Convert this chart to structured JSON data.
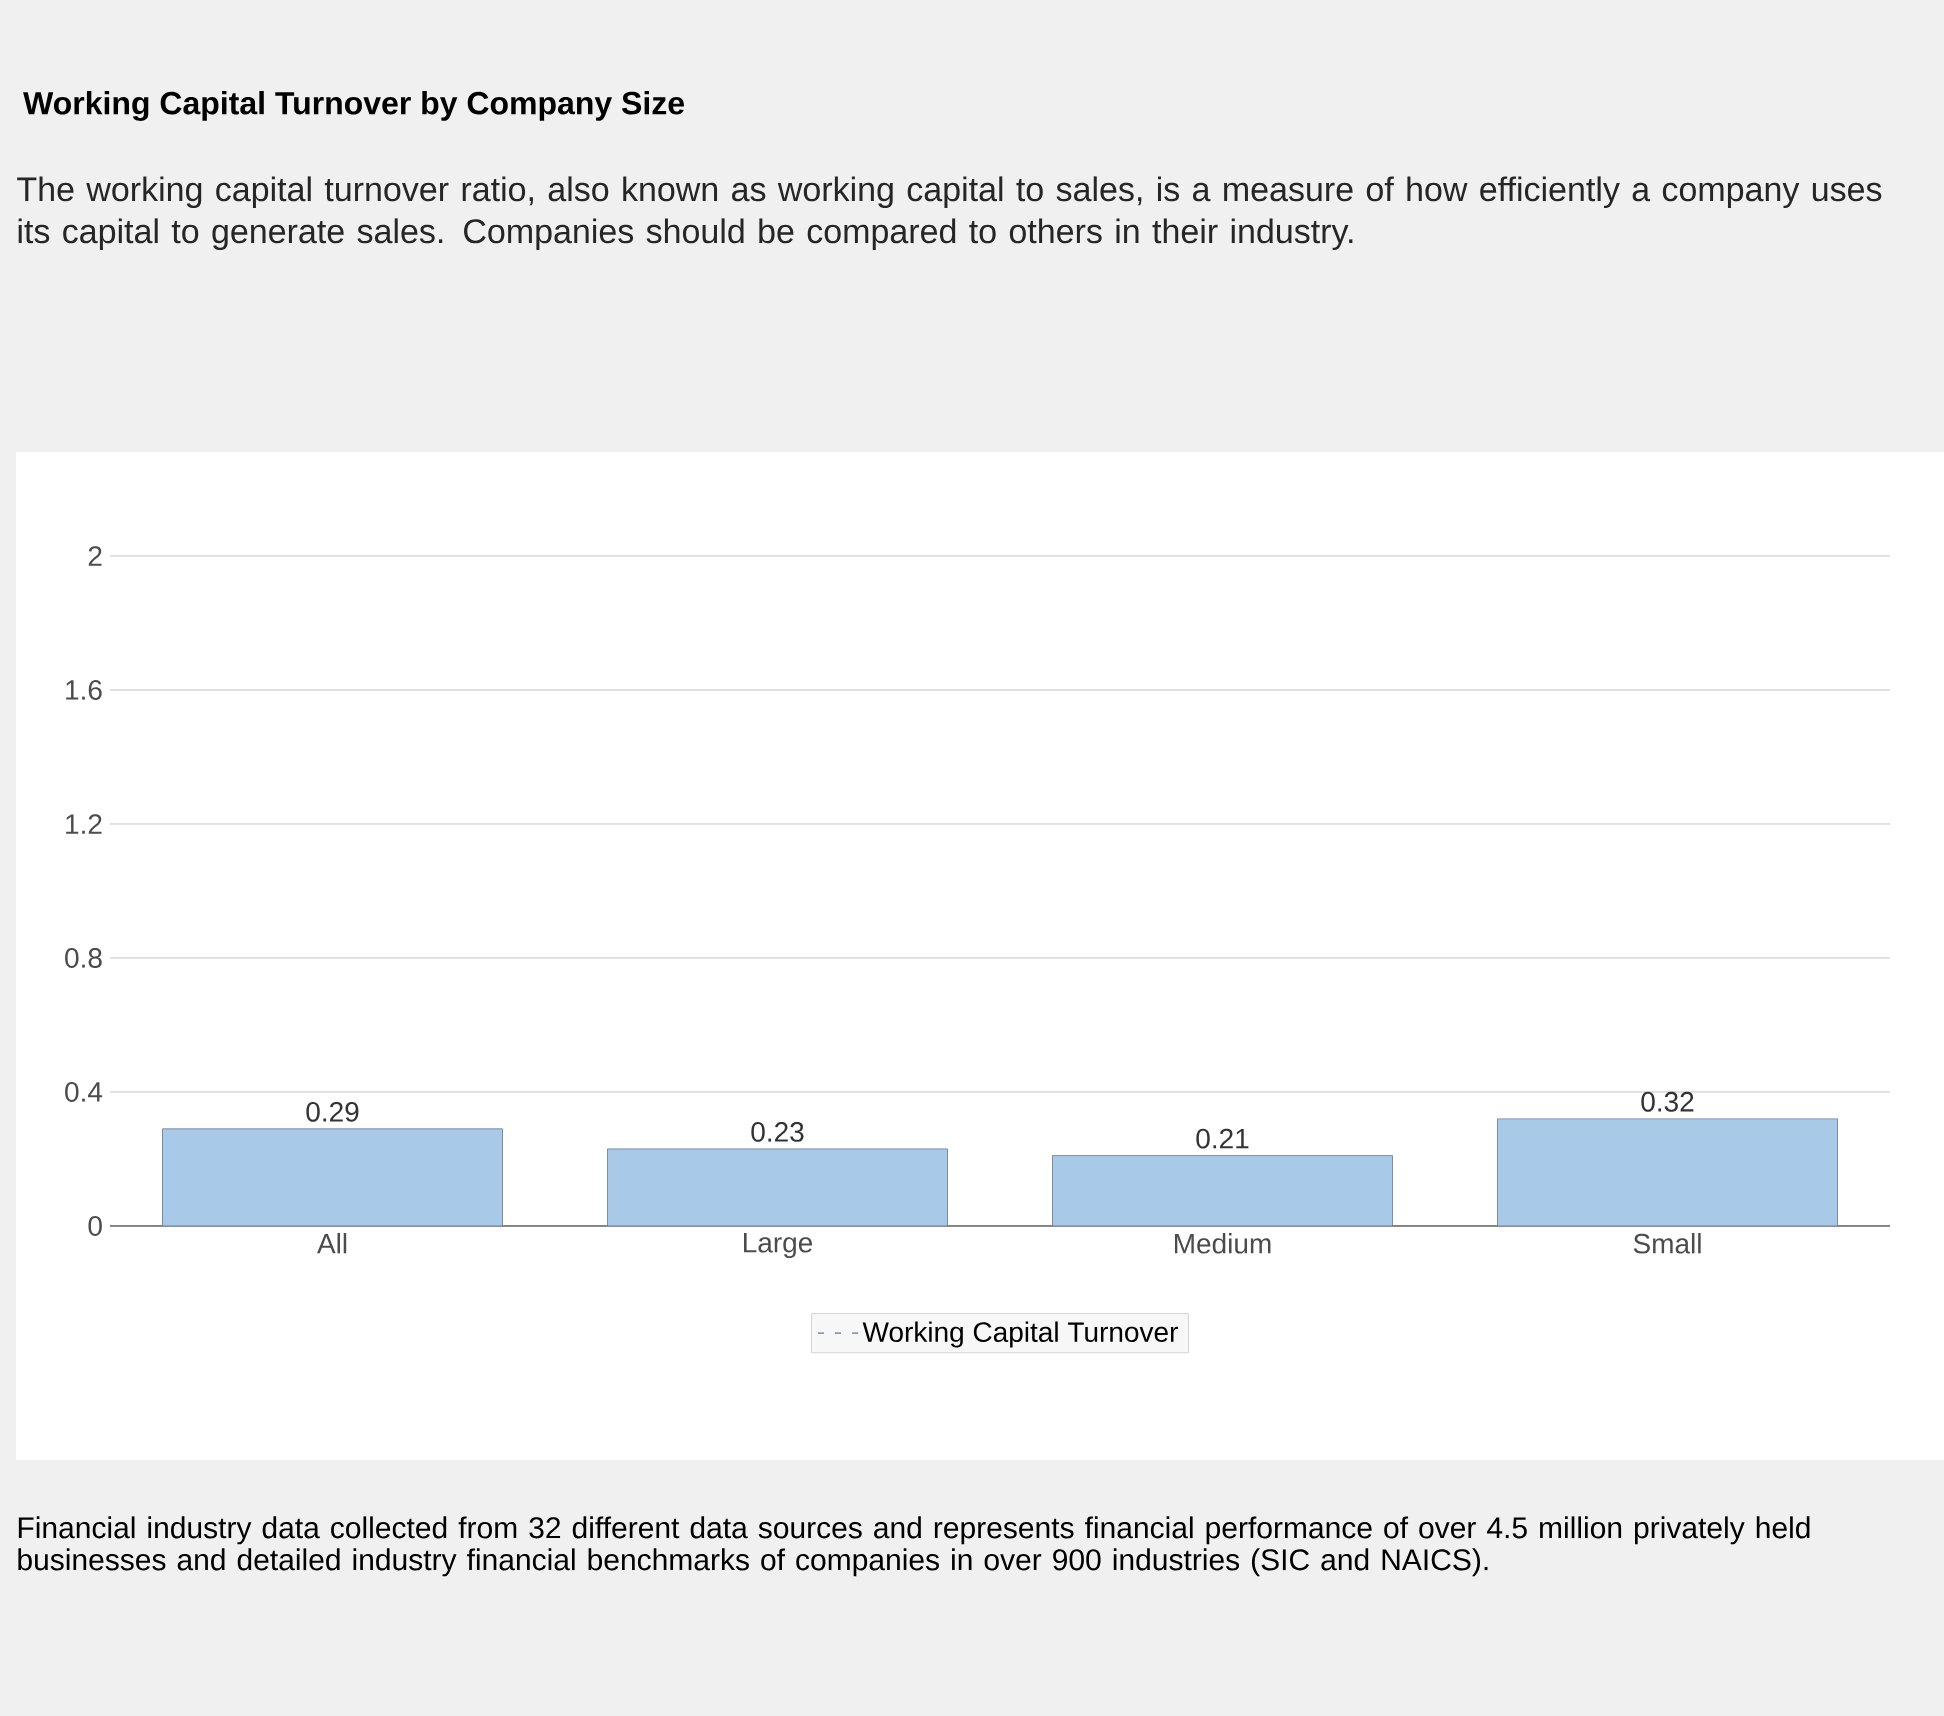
{
  "chart_data": {
    "type": "bar",
    "title": "Working Capital Turnover by Company Size",
    "subtitle": "The working capital turnover ratio, also known as working capital to sales, is a measure of how efficiently a company uses its capital to generate sales. Companies should be compared to others in their industry.",
    "categories": [
      "All",
      "Large",
      "Medium",
      "Small"
    ],
    "series": [
      {
        "name": "Working Capital Turnover",
        "color": "#a9c9e8",
        "values": [
          0.29,
          0.23,
          0.21,
          0.32
        ]
      }
    ],
    "ylim": [
      0,
      2
    ],
    "yticks": [
      0,
      0.4,
      0.8,
      1.2,
      1.6,
      2
    ],
    "grid": "y",
    "legend": "bottom",
    "data_labels": true,
    "annotations": [
      "Financial industry data collected from 32 different data sources and represents financial performance of over 4.5 million privately held businesses and detailed industry financial benchmarks of companies in over 900 industries (SIC and NAICS)."
    ]
  }
}
